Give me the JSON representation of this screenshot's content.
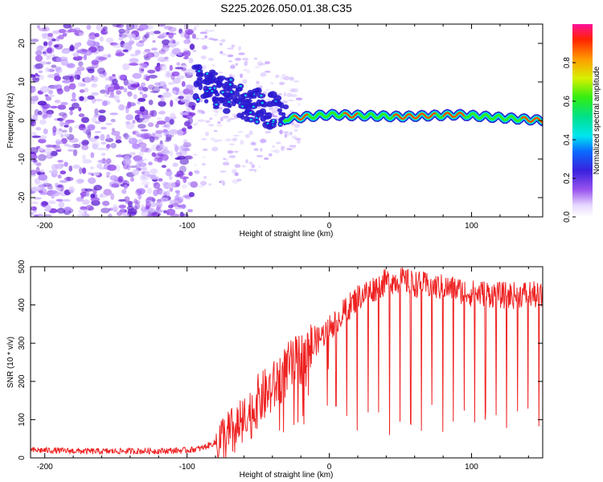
{
  "chart_data": [
    {
      "type": "heatmap",
      "title": "S225.2026.050.01.38.C35",
      "xlabel": "Height of straight line (km)",
      "ylabel": "Frequency (Hz)",
      "xlim": [
        -210,
        150
      ],
      "ylim": [
        -25,
        25
      ],
      "xticks": [
        -200,
        -100,
        0,
        100
      ],
      "yticks": [
        -20,
        -10,
        0,
        10,
        20
      ],
      "colorbar": {
        "label": "Normalized spectral amplitude",
        "range": [
          0,
          1
        ],
        "ticks": [
          "0.0",
          "0.2",
          "0.4",
          "0.6",
          "0.8"
        ]
      },
      "ridge": {
        "description_points": [
          {
            "x": -30,
            "y": 0.5
          },
          {
            "x": 0,
            "y": 1.5
          },
          {
            "x": 50,
            "y": 1
          },
          {
            "x": 90,
            "y": 1.5
          },
          {
            "x": 150,
            "y": 0
          }
        ]
      }
    },
    {
      "type": "line",
      "xlabel": "Height of straight line (km)",
      "ylabel": "SNR (10 * v/v)",
      "xlim": [
        -210,
        150
      ],
      "ylim": [
        0,
        500
      ],
      "xticks": [
        -200,
        -100,
        0,
        100
      ],
      "yticks": [
        0,
        100,
        200,
        300,
        400,
        500
      ],
      "series": [
        {
          "name": "SNR",
          "color": "#ee2222",
          "x": [
            -210,
            -200,
            -180,
            -160,
            -140,
            -120,
            -100,
            -90,
            -80,
            -70,
            -60,
            -50,
            -40,
            -30,
            -20,
            -10,
            0,
            10,
            20,
            30,
            40,
            50,
            60,
            70,
            80,
            90,
            100,
            110,
            120,
            130,
            140,
            150
          ],
          "y": [
            20,
            20,
            18,
            17,
            18,
            18,
            20,
            25,
            40,
            60,
            90,
            150,
            180,
            230,
            260,
            300,
            340,
            380,
            420,
            440,
            460,
            465,
            455,
            450,
            445,
            440,
            430,
            430,
            425,
            425,
            430,
            420
          ]
        }
      ]
    }
  ]
}
